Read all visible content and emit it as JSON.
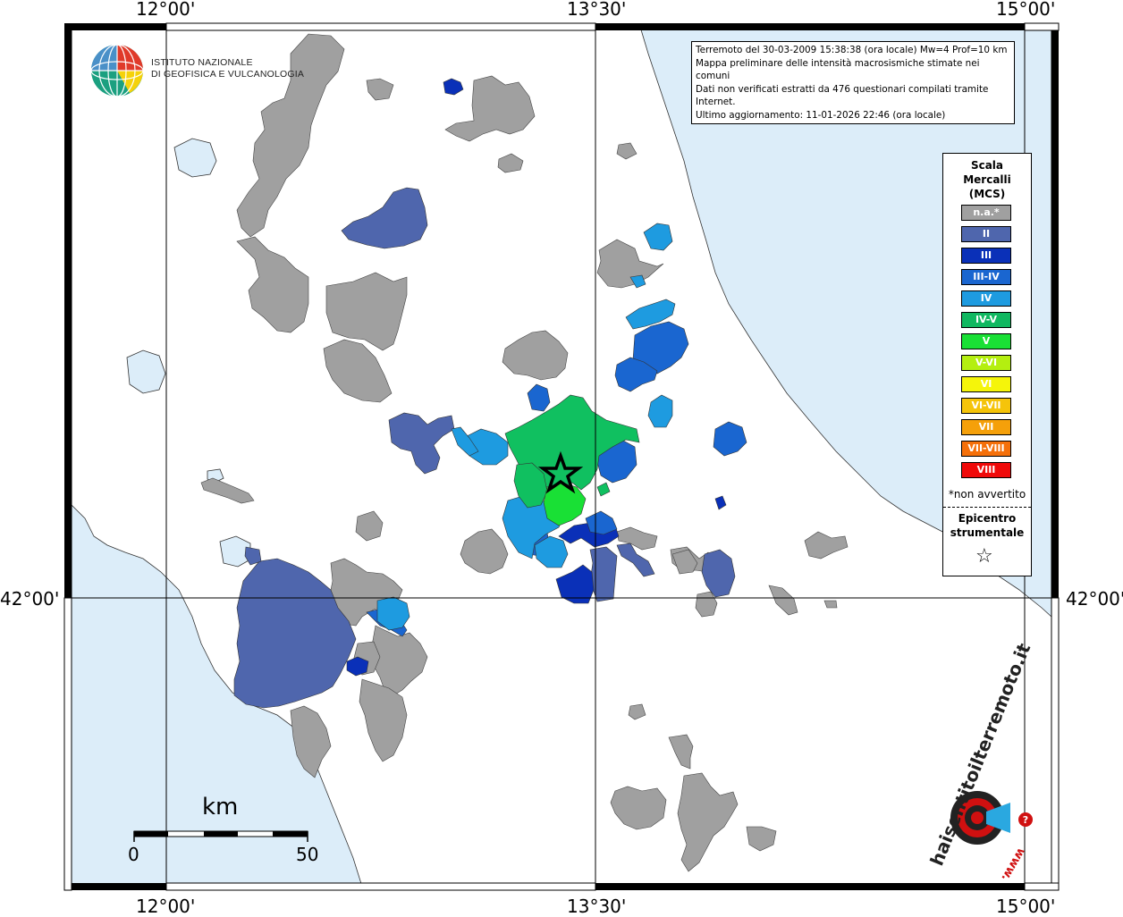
{
  "coords": {
    "top": [
      "12°00'",
      "13°30'",
      "15°00'"
    ],
    "bottom": [
      "12°00'",
      "13°30'",
      "15°00'"
    ],
    "left": "42°00'",
    "right": "42°00'"
  },
  "info": {
    "line1": "Terremoto del 30-03-2009 15:38:38 (ora locale) Mw=4 Prof=10 km",
    "line2": "Mappa preliminare delle intensità macrosismiche stimate nei comuni",
    "line3": "Dati non verificati estratti da 476 questionari compilati tramite Internet.",
    "line4": "Ultimo aggiornamento: 11-01-2026 22:46 (ora locale)"
  },
  "logo": {
    "line1": "ISTITUTO NAZIONALE",
    "line2": "DI GEOFISICA E VULCANOLOGIA",
    "hai_sentito": "haisentitoilterremoto.it",
    "www": "www."
  },
  "legend": {
    "title1": "Scala",
    "title2": "Mercalli",
    "title3": "(MCS)",
    "items": [
      {
        "label": "n.a.*",
        "color": "#a0a0a0"
      },
      {
        "label": "II",
        "color": "#4f66ad"
      },
      {
        "label": "III",
        "color": "#0a30b8"
      },
      {
        "label": "III-IV",
        "color": "#1a66d0"
      },
      {
        "label": "IV",
        "color": "#1e9be0"
      },
      {
        "label": "IV-V",
        "color": "#10b860"
      },
      {
        "label": "V",
        "color": "#19e035"
      },
      {
        "label": "V-VI",
        "color": "#b4ef10"
      },
      {
        "label": "VI",
        "color": "#f5f50a"
      },
      {
        "label": "VI-VII",
        "color": "#f5c40a"
      },
      {
        "label": "VII",
        "color": "#f5a00a"
      },
      {
        "label": "VII-VIII",
        "color": "#f5700a"
      },
      {
        "label": "VIII",
        "color": "#f00a0a"
      }
    ],
    "note": "*non avvertito",
    "epi1": "Epicentro",
    "epi2": "strumentale",
    "star": "☆"
  },
  "scalebar": {
    "unit": "km",
    "min": "0",
    "max": "50"
  },
  "colors": {
    "sea": "#dcedf9",
    "land": "#ffffff",
    "na": "#a0a0a0",
    "ii": "#4f66ad",
    "iii": "#0a30b8",
    "iii_iv": "#1a66d0",
    "iv": "#1e9be0",
    "iv_v": "#10c060",
    "v": "#19e035"
  }
}
